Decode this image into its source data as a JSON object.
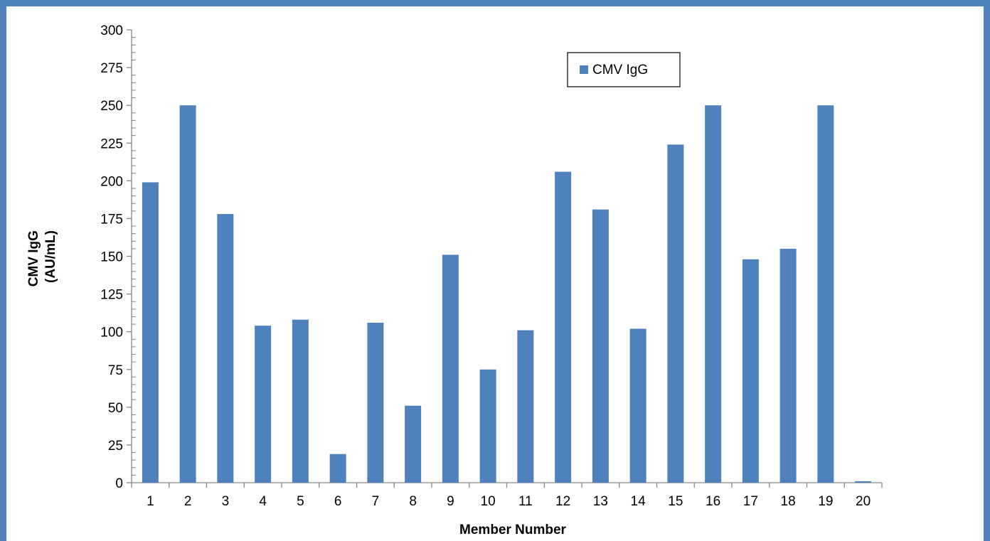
{
  "chart_data": {
    "type": "bar",
    "xlabel": "Member Number",
    "ylabel_line1": "CMV IgG",
    "ylabel_line2": "(AU/mL)",
    "categories": [
      "1",
      "2",
      "3",
      "4",
      "5",
      "6",
      "7",
      "8",
      "9",
      "10",
      "11",
      "12",
      "13",
      "14",
      "15",
      "16",
      "17",
      "18",
      "19",
      "20"
    ],
    "series": [
      {
        "name": "CMV IgG",
        "color": "#4f81bd",
        "values": [
          199,
          250,
          178,
          104,
          108,
          19,
          106,
          51,
          151,
          75,
          101,
          206,
          181,
          102,
          224,
          250,
          148,
          155,
          250,
          1
        ]
      }
    ],
    "ylim": [
      0,
      300
    ],
    "yticks": [
      0,
      25,
      50,
      75,
      100,
      125,
      150,
      175,
      200,
      225,
      250,
      275,
      300
    ],
    "minor_tick_step": 5,
    "grid": false,
    "legend_position": "top-right"
  }
}
